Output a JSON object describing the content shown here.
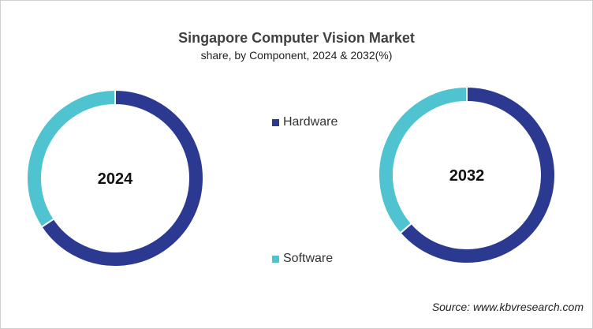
{
  "chart_data": {
    "type": "pie",
    "title": "Singapore  Computer Vision Market",
    "subtitle": "share, by Component, 2024 & 2032(%)",
    "categories": [
      "Hardware",
      "Software"
    ],
    "colors": {
      "Hardware": "#2b3990",
      "Software": "#4fc3cf"
    },
    "legend_placement": "center",
    "charts": [
      {
        "label": "2024",
        "values": [
          65.7,
          34.3
        ]
      },
      {
        "label": "2032",
        "values": [
          63.6,
          36.4
        ]
      }
    ],
    "source": "Source: www.kbvresearch.com"
  }
}
